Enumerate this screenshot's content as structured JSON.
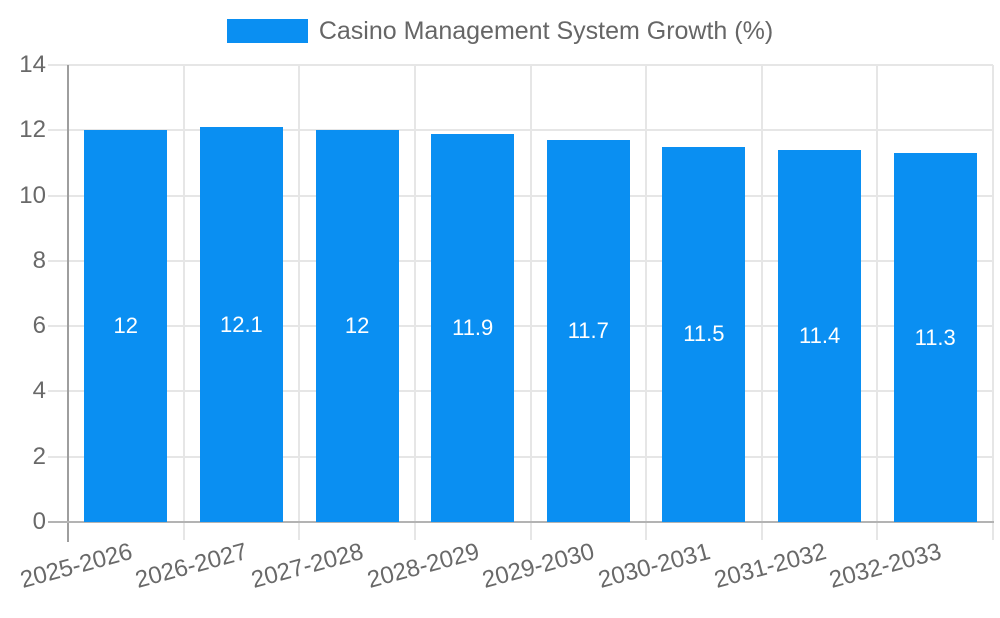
{
  "legend": {
    "position": "top"
  },
  "chart_data": {
    "type": "bar",
    "title": "Casino Management System Growth (%)",
    "categories": [
      "2025-2026",
      "2026-2027",
      "2027-2028",
      "2028-2029",
      "2029-2030",
      "2030-2031",
      "2031-2032",
      "2032-2033"
    ],
    "values": [
      12,
      12.1,
      12,
      11.9,
      11.7,
      11.5,
      11.4,
      11.3
    ],
    "value_labels": [
      "12",
      "12.1",
      "12",
      "11.9",
      "11.7",
      "11.5",
      "11.4",
      "11.3"
    ],
    "xlabel": "",
    "ylabel": "",
    "ylim": [
      0,
      14
    ],
    "y_ticks": [
      0,
      2,
      4,
      6,
      8,
      10,
      12,
      14
    ],
    "grid": true,
    "legend_position": "top",
    "colors": {
      "bar": "#0a8ff2",
      "grid": "#e6e6e6",
      "y_axis": "#9e9e9e",
      "x_axis": "#b3b3b3",
      "tick_text": "#696969",
      "title_text": "#666666",
      "bar_label": "#ffffff"
    }
  }
}
